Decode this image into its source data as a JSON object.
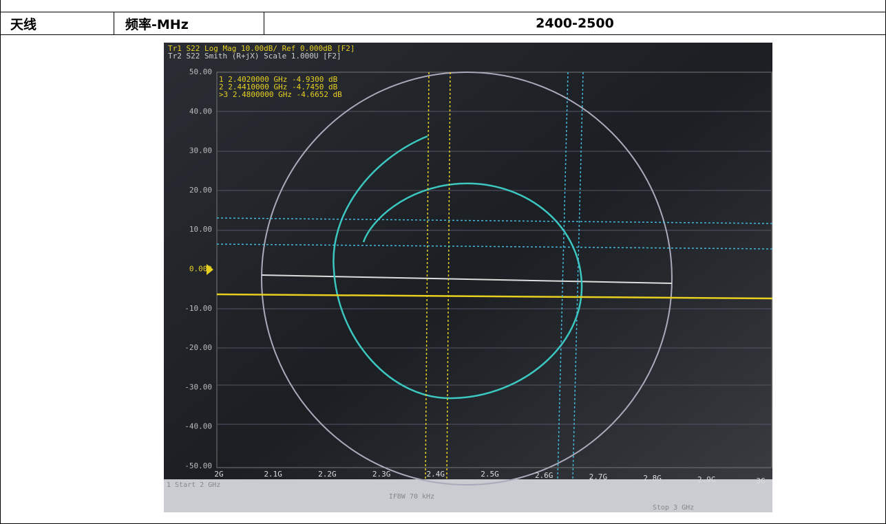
{
  "table": {
    "header_row": [
      "天线",
      "频率-MHz",
      "2400-2500"
    ]
  },
  "screen": {
    "trace_lines": [
      "Tr1 S22 Log Mag 10.00dB/ Ref 0.000dB [F2]",
      "Tr2 S22 Smith (R+jX) Scale 1.000U [F2]"
    ],
    "markers": [
      "1  2.4020000 GHz -4.9300 dB",
      "2  2.4410000 GHz -4.7450 dB",
      ">3  2.4800000 GHz -4.6652 dB"
    ],
    "y_labels": [
      "50.00",
      "40.00",
      "30.00",
      "20.00",
      "10.00",
      "0.000",
      "-10.00",
      "-20.00",
      "-30.00",
      "-40.00",
      "-50.00"
    ],
    "x_labels": [
      "2G",
      "2.1G",
      "2.2G",
      "2.3G",
      "2.4G",
      "2.5G",
      "2.6G",
      "2.7G",
      "2.8G",
      "2.9G",
      "3G"
    ],
    "footer": [
      "1 Start 2 GHz",
      "IFBW 70 kHz",
      "Stop 3 GHz"
    ]
  }
}
